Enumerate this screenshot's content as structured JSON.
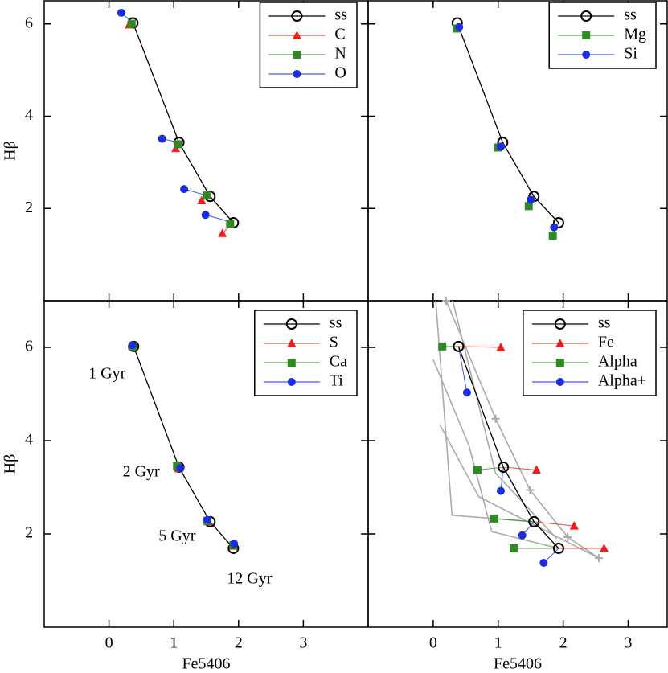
{
  "chart_data": [
    {
      "type": "line",
      "ylabel": "Hβ",
      "xlim": [
        -1,
        4
      ],
      "ylim": [
        0,
        6.5
      ],
      "xticks": [
        0,
        1,
        2,
        3
      ],
      "yticks": [
        2,
        4,
        6
      ],
      "xtick_labels": false,
      "ytick_labels": true,
      "legend": "upper right",
      "series": [
        {
          "name": "ss",
          "color": "#000000",
          "marker": "circle-open",
          "x": [
            0.37,
            1.08,
            1.56,
            1.92
          ],
          "values": [
            6.02,
            3.43,
            2.26,
            1.69
          ]
        },
        {
          "name": "C",
          "color": "#ee1c1c",
          "marker": "triangle",
          "x": [
            0.31,
            1.03,
            1.43,
            1.75
          ],
          "values": [
            5.98,
            3.3,
            2.17,
            1.46
          ]
        },
        {
          "name": "N",
          "color": "#2e8b22",
          "marker": "square",
          "x": [
            0.35,
            1.07,
            1.51,
            1.87
          ],
          "values": [
            6.0,
            3.39,
            2.28,
            1.67
          ]
        },
        {
          "name": "O",
          "color": "#1a2ee0",
          "marker": "circle",
          "x": [
            0.19,
            0.82,
            1.16,
            1.49
          ],
          "values": [
            6.24,
            3.51,
            2.42,
            1.86
          ]
        }
      ]
    },
    {
      "type": "line",
      "xlim": [
        -1,
        3.6
      ],
      "ylim": [
        0,
        6.5
      ],
      "xticks": [
        0,
        1,
        2,
        3
      ],
      "yticks": [
        2,
        4,
        6
      ],
      "xtick_labels": false,
      "ytick_labels": false,
      "legend": "upper right",
      "series": [
        {
          "name": "ss",
          "color": "#000000",
          "marker": "circle-open",
          "x": [
            0.37,
            1.07,
            1.55,
            1.93
          ],
          "values": [
            6.02,
            3.43,
            2.26,
            1.69
          ]
        },
        {
          "name": "Mg",
          "color": "#2e8b22",
          "marker": "square",
          "x": [
            0.36,
            1.0,
            1.47,
            1.84
          ],
          "values": [
            5.9,
            3.32,
            2.05,
            1.41
          ]
        },
        {
          "name": "Si",
          "color": "#1a2ee0",
          "marker": "circle",
          "x": [
            0.4,
            1.04,
            1.5,
            1.86
          ],
          "values": [
            5.93,
            3.34,
            2.19,
            1.59
          ]
        }
      ]
    },
    {
      "type": "line",
      "xlabel": "Fe5406",
      "ylabel": "Hβ",
      "xlim": [
        -1,
        4
      ],
      "ylim": [
        0,
        7
      ],
      "xticks": [
        0,
        1,
        2,
        3
      ],
      "yticks": [
        2,
        4,
        6
      ],
      "xtick_labels": true,
      "ytick_labels": true,
      "legend": "upper right",
      "annotations": [
        "1 Gyr",
        "2 Gyr",
        "5 Gyr",
        "12 Gyr"
      ],
      "series": [
        {
          "name": "ss",
          "color": "#000000",
          "marker": "circle-open",
          "x": [
            0.38,
            1.08,
            1.56,
            1.92
          ],
          "values": [
            6.02,
            3.43,
            2.26,
            1.69
          ]
        },
        {
          "name": "S",
          "color": "#ee1c1c",
          "marker": "triangle",
          "x": [
            0.36,
            1.08,
            1.54,
            1.92
          ],
          "values": [
            6.03,
            3.4,
            2.26,
            1.74
          ]
        },
        {
          "name": "Ca",
          "color": "#2e8b22",
          "marker": "square",
          "x": [
            0.37,
            1.05,
            1.52,
            1.92
          ],
          "values": [
            6.02,
            3.46,
            2.28,
            1.76
          ]
        },
        {
          "name": "Ti",
          "color": "#1a2ee0",
          "marker": "circle",
          "x": [
            0.36,
            1.1,
            1.52,
            1.93
          ],
          "values": [
            6.05,
            3.41,
            2.3,
            1.79
          ]
        }
      ]
    },
    {
      "type": "line",
      "xlabel": "Fe5406",
      "xlim": [
        -1,
        3.6
      ],
      "ylim": [
        0,
        7
      ],
      "xticks": [
        0,
        1,
        2,
        3
      ],
      "yticks": [
        2,
        4,
        6
      ],
      "xtick_labels": true,
      "ytick_labels": false,
      "legend": "upper right",
      "model_lines": [
        {
          "color": "#aaaaaa",
          "x": [
            0.04,
            0.29,
            1.55
          ],
          "values": [
            7.0,
            2.4,
            2.26
          ]
        },
        {
          "color": "#aaaaaa",
          "x": [
            0.0,
            0.55,
            0.9,
            1.93
          ],
          "values": [
            5.74,
            3.9,
            2.05,
            1.69
          ]
        },
        {
          "color": "#aaaaaa",
          "x": [
            0.1,
            0.7,
            2.55
          ],
          "values": [
            4.35,
            2.8,
            1.48
          ]
        },
        {
          "color": "#aaaaaa",
          "marker": "plus",
          "x": [
            0.2,
            0.96,
            1.49,
            2.07,
            2.55
          ],
          "values": [
            7.0,
            4.47,
            2.94,
            1.93,
            1.48
          ]
        },
        {
          "color": "#aaaaaa",
          "x": [
            0.3,
            0.96,
            1.9
          ],
          "values": [
            7.0,
            3.3,
            1.9
          ]
        }
      ],
      "series": [
        {
          "name": "ss",
          "color": "#000000",
          "marker": "circle-open",
          "x": [
            0.39,
            1.08,
            1.55,
            1.93
          ],
          "values": [
            6.02,
            3.43,
            2.26,
            1.69
          ]
        },
        {
          "name": "Fe",
          "color": "#ee1c1c",
          "marker": "triangle",
          "x": [
            1.04,
            1.59,
            2.17,
            2.63
          ],
          "values": [
            6.0,
            3.37,
            2.17,
            1.69
          ]
        },
        {
          "name": "Alpha",
          "color": "#2e8b22",
          "marker": "square",
          "x": [
            0.14,
            0.68,
            0.94,
            1.24
          ],
          "values": [
            6.02,
            3.37,
            2.33,
            1.69
          ]
        },
        {
          "name": "Alpha+",
          "color": "#1a2ee0",
          "marker": "circle",
          "x": [
            0.52,
            1.04,
            1.37,
            1.7
          ],
          "values": [
            5.03,
            2.92,
            1.97,
            1.38
          ]
        }
      ]
    }
  ]
}
